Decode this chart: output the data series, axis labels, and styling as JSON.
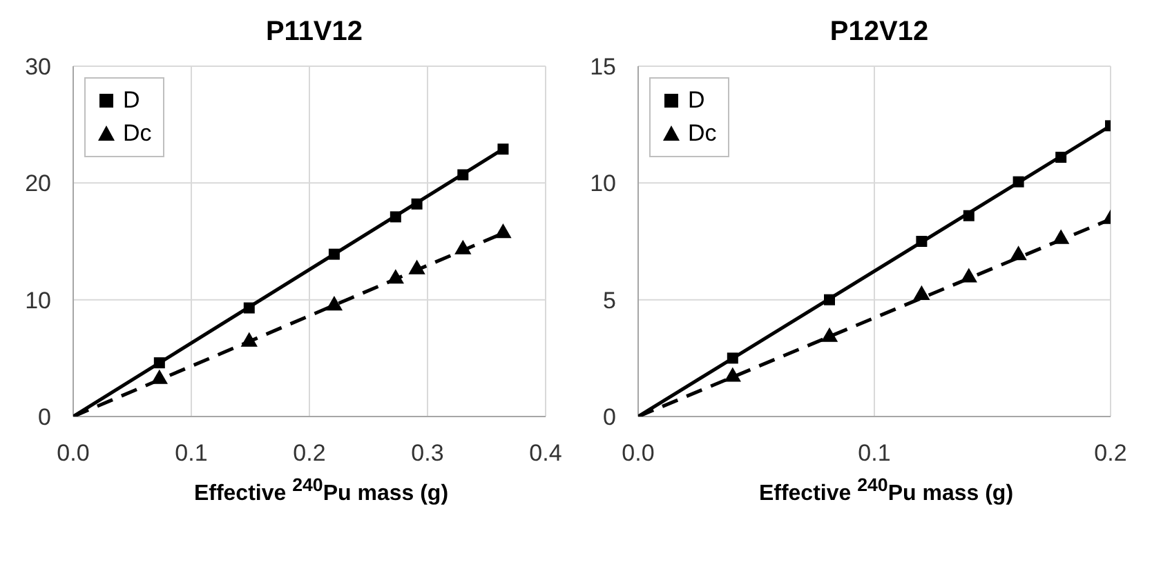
{
  "chart_data": [
    {
      "type": "scatter",
      "title": "P11V12",
      "xlabel": "Effective $^{240}$Pu mass (g)",
      "xlim": [
        0,
        0.4
      ],
      "xticks": [
        {
          "value": 0,
          "label": "0.0"
        },
        0.1,
        0.2,
        0.3,
        0.4
      ],
      "ylim": [
        0,
        30
      ],
      "yticks": [
        0,
        10,
        20,
        30
      ],
      "grid": true,
      "legend": "top left",
      "series": [
        {
          "name": "D",
          "color": "#000000",
          "marker": "square",
          "x": [
            0.073,
            0.149,
            0.221,
            0.273,
            0.291,
            0.33,
            0.364
          ],
          "values": [
            4.6,
            9.3,
            13.9,
            17.1,
            18.2,
            20.7,
            22.9
          ]
        },
        {
          "name": "Dc",
          "color": "#000000",
          "marker": "triangle",
          "x": [
            0.073,
            0.149,
            0.221,
            0.273,
            0.291,
            0.33,
            0.364
          ],
          "values": [
            3.2,
            6.4,
            9.5,
            11.8,
            12.6,
            14.3,
            15.7
          ]
        },
        {
          "type": "line",
          "color": "#000000",
          "marker": "none",
          "line_style": "solid",
          "x": [
            0,
            0.364
          ],
          "values": [
            0,
            22.9
          ]
        },
        {
          "type": "line",
          "color": "#000000",
          "marker": "none",
          "line_style": "dashed",
          "x": [
            0,
            0.364
          ],
          "values": [
            0,
            15.7
          ]
        }
      ]
    },
    {
      "type": "scatter",
      "title": "P12V12",
      "xlabel": "Effective $^{240}$Pu mass (g)",
      "xlim": [
        0,
        0.2
      ],
      "xticks": [
        {
          "value": 0,
          "label": "0.0"
        },
        0.1,
        0.2
      ],
      "ylim": [
        0,
        15
      ],
      "yticks": [
        0,
        5,
        10,
        15
      ],
      "grid": true,
      "legend": "top left",
      "series": [
        {
          "name": "D",
          "color": "#000000",
          "marker": "square",
          "x": [
            0.04,
            0.081,
            0.12,
            0.14,
            0.161,
            0.179,
            0.2
          ],
          "values": [
            2.5,
            5.0,
            7.5,
            8.6,
            10.05,
            11.1,
            12.45
          ]
        },
        {
          "name": "Dc",
          "color": "#000000",
          "marker": "triangle",
          "x": [
            0.04,
            0.081,
            0.12,
            0.14,
            0.161,
            0.179,
            0.2
          ],
          "values": [
            1.7,
            3.4,
            5.2,
            5.95,
            6.9,
            7.6,
            8.45
          ]
        },
        {
          "type": "line",
          "color": "#000000",
          "marker": "none",
          "line_style": "solid",
          "x": [
            0,
            0.2
          ],
          "values": [
            0,
            12.45
          ]
        },
        {
          "type": "line",
          "color": "#000000",
          "marker": "none",
          "line_style": "dashed",
          "x": [
            0,
            0.2
          ],
          "values": [
            0,
            8.45
          ]
        }
      ]
    }
  ]
}
